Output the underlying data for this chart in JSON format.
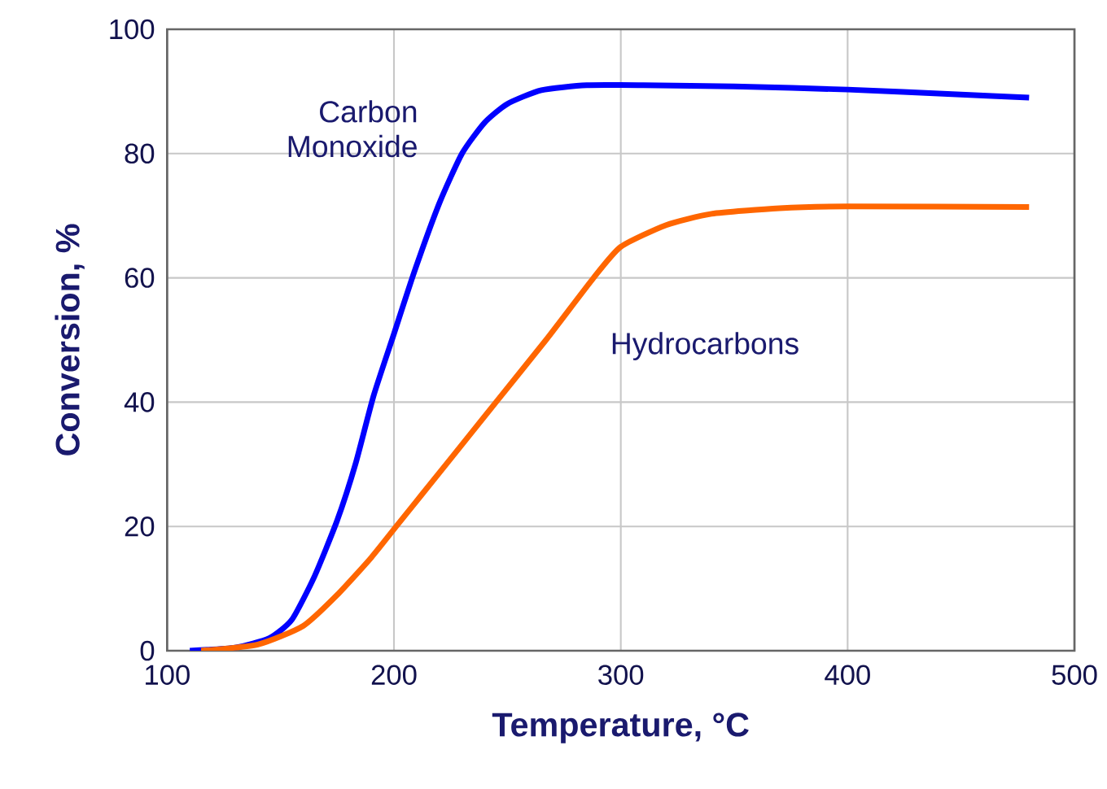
{
  "chart_data": {
    "type": "line",
    "xlabel": "Temperature, °C",
    "ylabel": "Conversion, %",
    "xlim": [
      100,
      500
    ],
    "xticks": [
      100,
      200,
      300,
      400,
      500
    ],
    "ylim": [
      0,
      100
    ],
    "yticks": [
      0,
      20,
      40,
      60,
      80,
      100
    ],
    "grid": true,
    "legend": false,
    "marker": "none",
    "line_style": "solid",
    "series": [
      {
        "name": "Carbon Monoxide",
        "color": "#0000ff",
        "x": [
          110,
          130,
          145,
          155,
          165,
          175,
          183,
          191,
          200,
          209,
          220,
          230,
          240,
          250,
          265,
          285,
          310,
          350,
          400,
          450,
          480
        ],
        "values": [
          0,
          0.5,
          2,
          5,
          12,
          21,
          30,
          41,
          51,
          61,
          72,
          80,
          85,
          88,
          90.2,
          91,
          91,
          90.8,
          90.3,
          89.5,
          89
        ]
      },
      {
        "name": "Hydrocarbons",
        "color": "#ff6600",
        "x": [
          115,
          140,
          160,
          175,
          190,
          201,
          223,
          245,
          267,
          288,
          300,
          320,
          340,
          370,
          400,
          480
        ],
        "values": [
          0,
          1,
          4,
          9,
          15,
          20,
          30,
          40,
          50,
          60,
          65,
          68.5,
          70.3,
          71.2,
          71.5,
          71.4
        ]
      }
    ]
  }
}
